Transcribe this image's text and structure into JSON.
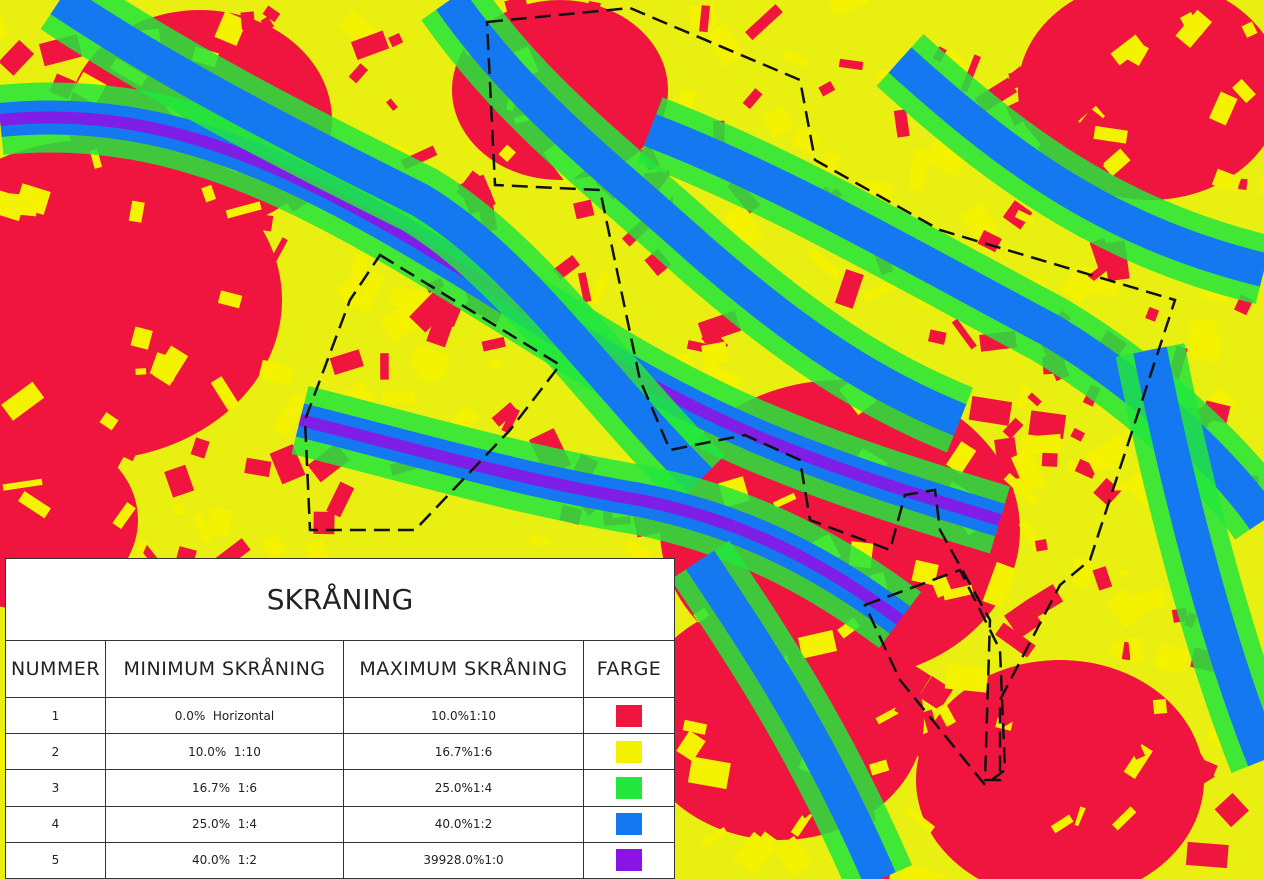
{
  "legend": {
    "title": "SKRÅNING",
    "headers": [
      "NUMMER",
      "MINIMUM SKRÅNING",
      "MAXIMUM SKRÅNING",
      "FARGE"
    ],
    "rows": [
      {
        "number": "1",
        "minimum": "0.0%  Horizontal",
        "maximum": "10.0%1:10",
        "color": "#f0153f"
      },
      {
        "number": "2",
        "minimum": "10.0%  1:10",
        "maximum": "16.7%1:6",
        "color": "#f5f200"
      },
      {
        "number": "3",
        "minimum": "16.7%  1:6",
        "maximum": "25.0%1:4",
        "color": "#22e63c"
      },
      {
        "number": "4",
        "minimum": "25.0%  1:4",
        "maximum": "40.0%1:2",
        "color": "#1478f0"
      },
      {
        "number": "5",
        "minimum": "40.0%  1:2",
        "maximum": "39928.0%1:0",
        "color": "#8a14e6"
      }
    ]
  }
}
